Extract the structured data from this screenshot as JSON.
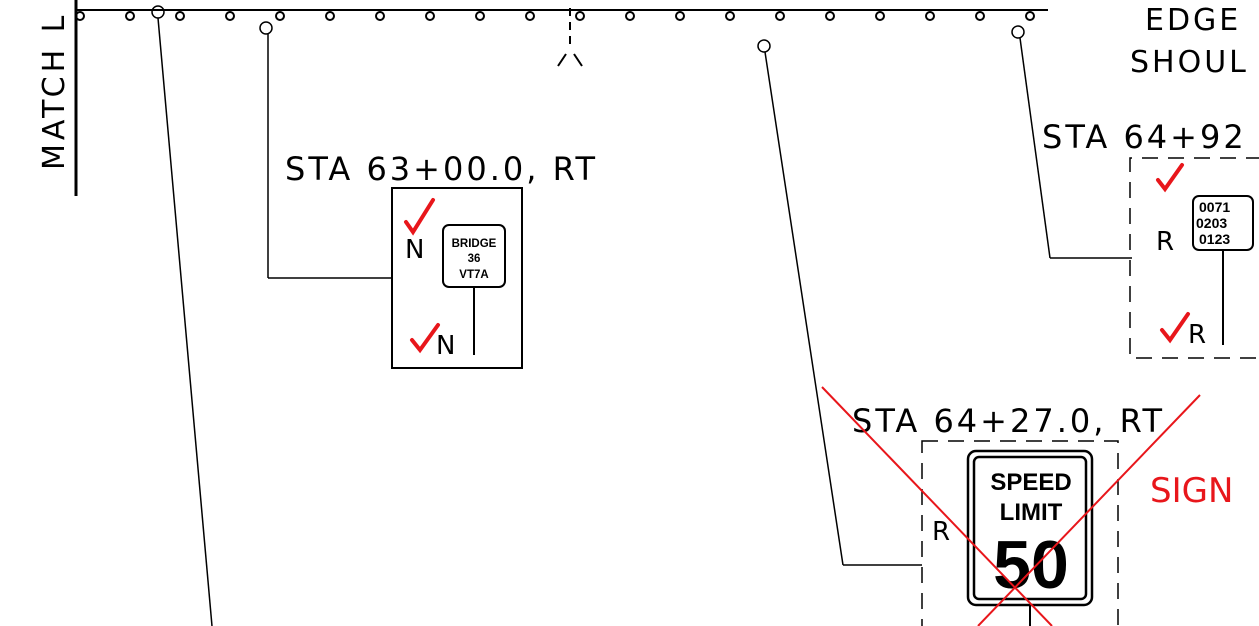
{
  "match_line": "MATCH L",
  "edge_label": {
    "line1": "EDGE",
    "line2": "SHOUL"
  },
  "stations": {
    "sta_63": "STA 63+00.0, RT",
    "sta_64_27": "STA 64+27.0, RT",
    "sta_64_92": "STA 64+92"
  },
  "signs": {
    "bridge": {
      "line1": "BRIDGE",
      "line2": "36",
      "line3": "VT7A",
      "code_top": "N",
      "code_bottom": "N"
    },
    "milepost": {
      "line1": "0071",
      "line2": "0203",
      "line3": "0123",
      "code_top": "R",
      "code_bottom": "R"
    },
    "speed_limit": {
      "line1": "SPEED",
      "line2": "LIMIT",
      "value": "50",
      "code": "R"
    }
  },
  "markup_note": "SIGN",
  "colors": {
    "line": "#000000",
    "markup": "#e8161b"
  }
}
